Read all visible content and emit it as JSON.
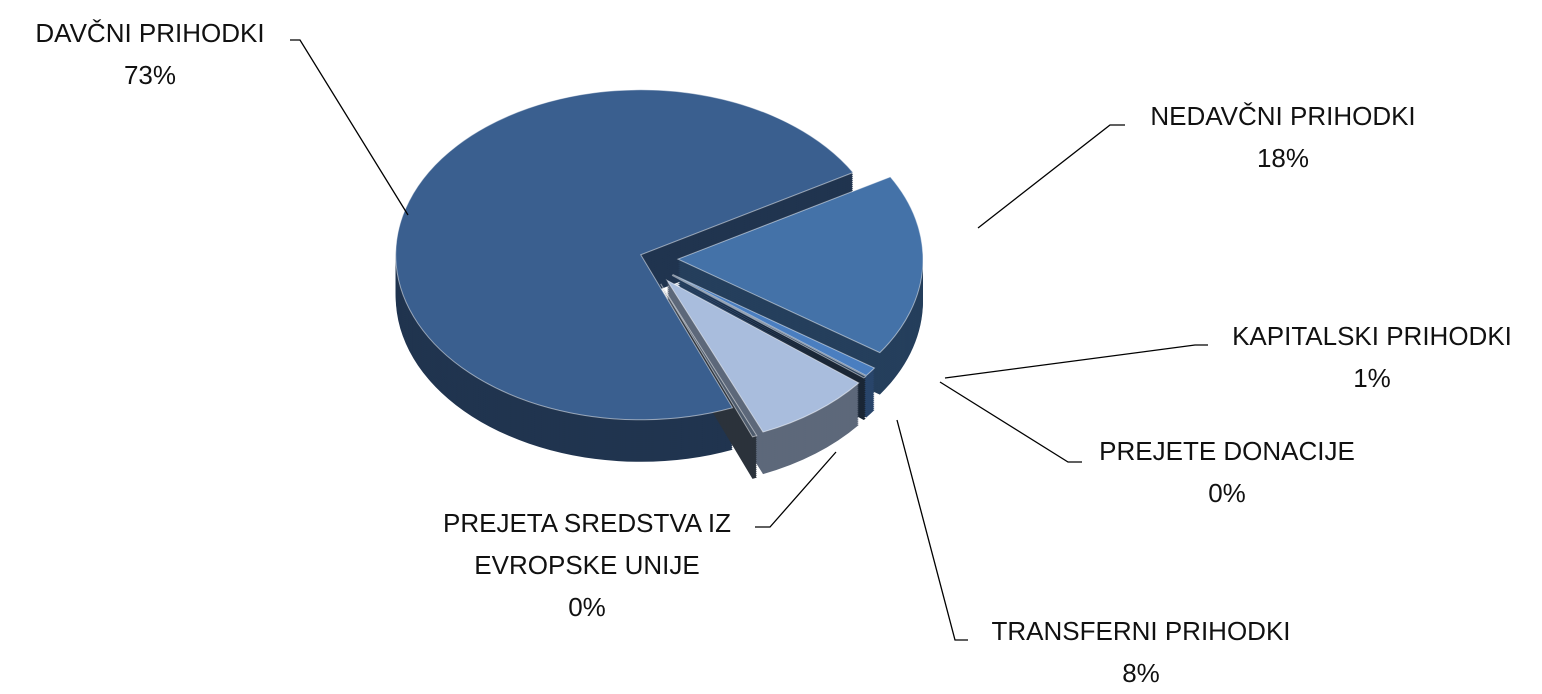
{
  "chart_data": {
    "type": "pie3d",
    "categories": [
      "DAVČNI PRIHODKI",
      "NEDAVČNI PRIHODKI",
      "KAPITALSKI PRIHODKI",
      "PREJETE DONACIJE",
      "TRANSFERNI PRIHODKI",
      "PREJETA SREDSTVA IZ EVROPSKE UNIJE"
    ],
    "values": [
      72.8,
      17.9,
      0.9,
      0.2,
      7.9,
      0.3
    ],
    "value_labels": [
      "73%",
      "18%",
      "1%",
      "0%",
      "8%",
      "0%"
    ],
    "colors": [
      "#3a5f8f",
      "#4472a8",
      "#4a7ec0",
      "#2f4560",
      "#a9bddd",
      "#4e5b6c"
    ]
  }
}
